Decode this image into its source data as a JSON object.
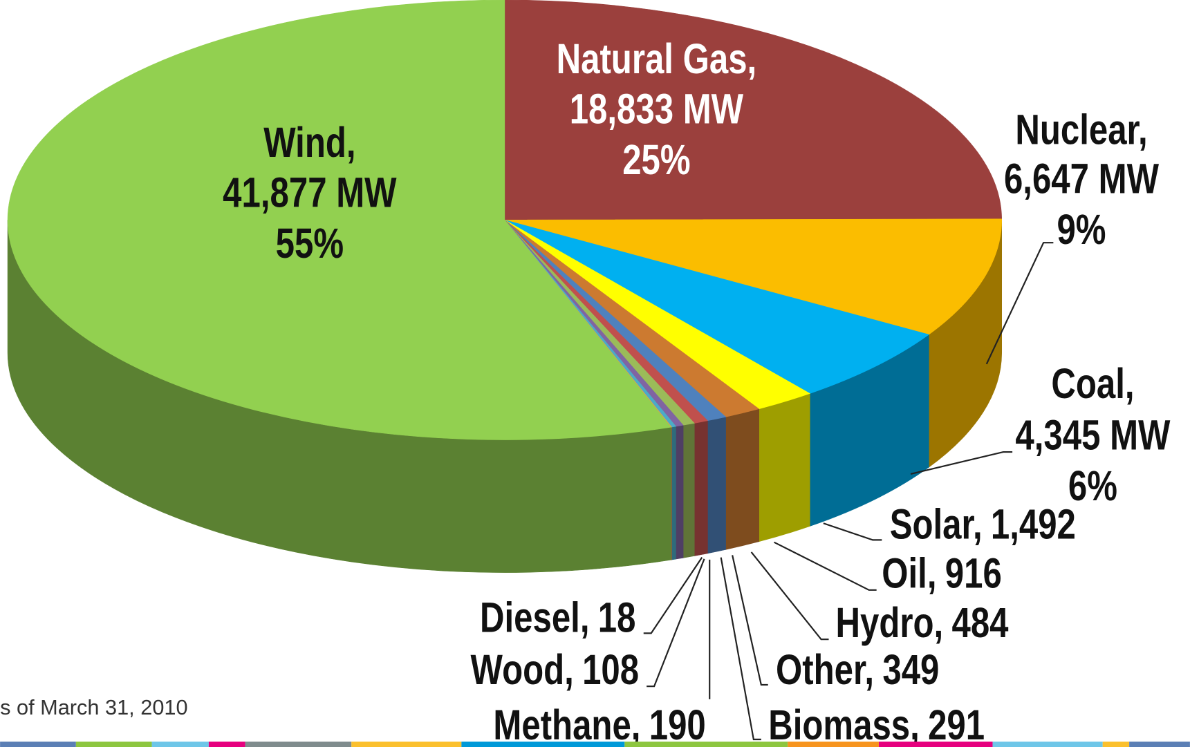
{
  "chart_data": {
    "type": "pie",
    "categories": [
      "Natural Gas,",
      "Nuclear,",
      "Coal,",
      "Solar,",
      "Oil,",
      "Hydro,",
      "Other,",
      "Biomass,",
      "Methane,",
      "Wood,",
      "Diesel,",
      "Wind,"
    ],
    "values": [
      18833,
      6647,
      4345,
      1492,
      916,
      484,
      349,
      291,
      190,
      108,
      18,
      41877
    ],
    "value_labels": [
      "18,833 MW",
      "6,647 MW",
      "4,345 MW",
      "1,492",
      "916",
      "484",
      "349",
      "291",
      "190",
      "108",
      "18",
      "41,877 MW"
    ],
    "percent_labels": [
      "25%",
      "9%",
      "6%",
      null,
      null,
      null,
      null,
      null,
      null,
      null,
      null,
      "55%"
    ],
    "colors": [
      "#9b403d",
      "#fbbd00",
      "#00b0f0",
      "#ffff00",
      "#cc7a30",
      "#4f81bd",
      "#c0504d",
      "#9bbb59",
      "#8064a2",
      "#4bacc6",
      "#f79646",
      "#92d050"
    ],
    "note": "s of March 31, 2010"
  }
}
